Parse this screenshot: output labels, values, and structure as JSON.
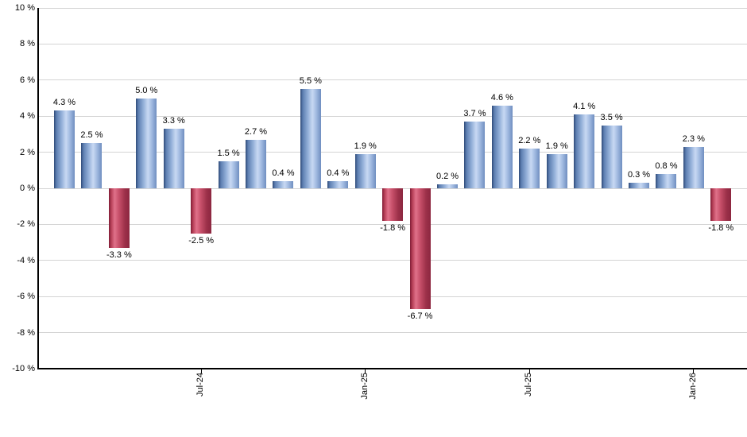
{
  "chart_data": {
    "type": "bar",
    "title": "",
    "unit": "%",
    "grid": true,
    "legend": "none",
    "y_axis": {
      "ylim": [
        -10,
        10
      ],
      "tick_values": [
        10,
        8,
        6,
        4,
        2,
        0,
        -2,
        -4,
        -6,
        -8,
        -10
      ],
      "ticks": [
        "10 %",
        "8 %",
        "6 %",
        "4 %",
        "2 %",
        "0 %",
        "-2 %",
        "-4 %",
        "-6 %",
        "-8 %",
        "-10 %"
      ]
    },
    "x_axis": {
      "ticks": [
        {
          "bar_index": 5,
          "label": "Jul-24"
        },
        {
          "bar_index": 11,
          "label": "Jan-25"
        },
        {
          "bar_index": 17,
          "label": "Jul-25"
        },
        {
          "bar_index": 23,
          "label": "Jan-26"
        }
      ]
    },
    "bars": {
      "values": [
        4.3,
        2.5,
        -3.3,
        5.0,
        3.3,
        -2.5,
        1.5,
        2.7,
        0.4,
        5.5,
        0.4,
        1.9,
        -1.8,
        -6.7,
        0.2,
        3.7,
        4.6,
        2.2,
        1.9,
        4.1,
        3.5,
        0.3,
        0.8,
        2.3,
        -1.8
      ],
      "labels": [
        "4.3 %",
        "2.5 %",
        "-3.3 %",
        "5.0 %",
        "3.3 %",
        "-2.5 %",
        "1.5 %",
        "2.7 %",
        "0.4 %",
        "5.5 %",
        "0.4 %",
        "1.9 %",
        "-1.8 %",
        "-6.7 %",
        "0.2 %",
        "3.7 %",
        "4.6 %",
        "2.2 %",
        "1.9 %",
        "4.1 %",
        "3.5 %",
        "0.3 %",
        "0.8 %",
        "2.3 %",
        "-1.8 %"
      ]
    },
    "colors": {
      "positive_bar_stops": [
        "#2F4B79 0%",
        "#5E7FB2 12%",
        "#8FACD6 35%",
        "#C8D9F3 58%",
        "#9FB8DF 78%",
        "#6F8EC0 100%"
      ],
      "negative_bar_stops": [
        "#801D36 0%",
        "#B84159 12%",
        "#E0718A 28%",
        "#C54E68 50%",
        "#9C3049 78%",
        "#8C2740 100%"
      ],
      "gridline": "#D4D4D4",
      "axis": "#000000",
      "text": "#000000"
    }
  }
}
